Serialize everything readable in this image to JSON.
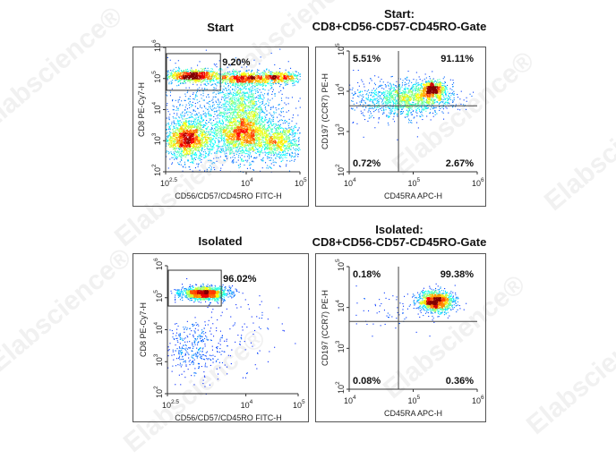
{
  "watermark": "Elabscience®",
  "chart_data": [
    {
      "type": "scatter",
      "subtype": "flow-cytometry-density",
      "title": "Start",
      "xlabel": "CD56/CD57/CD45RO FITC-H",
      "ylabel": "CD8 PE-Cy7-H",
      "xscale": "log",
      "yscale": "log",
      "xlim_log10": [
        2.5,
        5
      ],
      "ylim_log10": [
        2,
        6
      ],
      "xticks_log10": [
        2.5,
        4,
        5
      ],
      "yticks_log10": [
        2,
        3,
        4,
        5,
        6
      ],
      "gate": {
        "type": "rectangle",
        "x_log10": [
          2.5,
          3.52
        ],
        "y_log10": [
          4.62,
          5.8
        ],
        "label": "9.20%"
      },
      "populations": [
        {
          "x_log10": 3.0,
          "y_log10": 5.1,
          "sd": [
            0.25,
            0.1
          ],
          "n": 900
        },
        {
          "x_log10": 3.95,
          "y_log10": 5.02,
          "sd": [
            0.25,
            0.1
          ],
          "n": 700
        },
        {
          "x_log10": 4.6,
          "y_log10": 5.05,
          "sd": [
            0.2,
            0.1
          ],
          "n": 500
        },
        {
          "x_log10": 2.9,
          "y_log10": 3.05,
          "sd": [
            0.22,
            0.28
          ],
          "n": 1500
        },
        {
          "x_log10": 3.95,
          "y_log10": 3.2,
          "sd": [
            0.25,
            0.3
          ],
          "n": 1400
        },
        {
          "x_log10": 4.6,
          "y_log10": 3.0,
          "sd": [
            0.2,
            0.28
          ],
          "n": 700
        },
        {
          "x_log10": 3.95,
          "y_log10": 4.1,
          "sd": [
            0.22,
            0.4
          ],
          "n": 700
        },
        {
          "x_log10": 3.6,
          "y_log10": 3.6,
          "sd": [
            0.75,
            0.9
          ],
          "n": 1600
        }
      ]
    },
    {
      "type": "scatter",
      "subtype": "flow-cytometry-density",
      "title": "Start:\nCD8+CD56-CD57-CD45RO-Gate",
      "xlabel": "CD45RA APC-H",
      "ylabel": "CD197 (CCR7) PE-H",
      "xscale": "log",
      "yscale": "log",
      "xlim_log10": [
        4,
        6
      ],
      "ylim_log10": [
        2,
        5
      ],
      "xticks_log10": [
        4,
        5,
        6
      ],
      "yticks_log10": [
        2,
        3,
        4,
        5
      ],
      "quadrant": {
        "x_log10": 4.77,
        "y_log10": 3.64
      },
      "quadrant_labels": {
        "upper_left": "5.51%",
        "upper_right": "91.11%",
        "lower_left": "0.72%",
        "lower_right": "2.67%"
      },
      "populations": [
        {
          "x_log10": 5.3,
          "y_log10": 4.05,
          "sd": [
            0.1,
            0.1
          ],
          "n": 600
        },
        {
          "x_log10": 5.05,
          "y_log10": 3.85,
          "sd": [
            0.3,
            0.2
          ],
          "n": 1000
        },
        {
          "x_log10": 4.6,
          "y_log10": 3.8,
          "sd": [
            0.35,
            0.25
          ],
          "n": 500
        }
      ]
    },
    {
      "type": "scatter",
      "subtype": "flow-cytometry-density",
      "title": "Isolated",
      "xlabel": "CD56/CD57/CD45RO FITC-H",
      "ylabel": "CD8 PE-Cy7-H",
      "xscale": "log",
      "yscale": "log",
      "xlim_log10": [
        2.5,
        5
      ],
      "ylim_log10": [
        2,
        6
      ],
      "xticks_log10": [
        2.5,
        4,
        5
      ],
      "yticks_log10": [
        2,
        3,
        4,
        5,
        6
      ],
      "gate": {
        "type": "rectangle",
        "x_log10": [
          2.5,
          3.53
        ],
        "y_log10": [
          4.74,
          5.86
        ],
        "label": "96.02%"
      },
      "populations": [
        {
          "x_log10": 3.2,
          "y_log10": 5.15,
          "sd": [
            0.22,
            0.1
          ],
          "n": 1500
        },
        {
          "x_log10": 3.0,
          "y_log10": 3.4,
          "sd": [
            0.3,
            0.45
          ],
          "n": 350
        },
        {
          "x_log10": 3.6,
          "y_log10": 4.0,
          "sd": [
            0.6,
            0.8
          ],
          "n": 120
        }
      ]
    },
    {
      "type": "scatter",
      "subtype": "flow-cytometry-density",
      "title": "Isolated:\nCD8+CD56-CD57-CD45RO-Gate",
      "xlabel": "CD45RA APC-H",
      "ylabel": "CD197 (CCR7) PE-H",
      "xscale": "log",
      "yscale": "log",
      "xlim_log10": [
        4,
        6
      ],
      "ylim_log10": [
        2,
        5
      ],
      "xticks_log10": [
        4,
        5,
        6
      ],
      "yticks_log10": [
        2,
        3,
        4,
        5
      ],
      "quadrant": {
        "x_log10": 4.77,
        "y_log10": 3.66
      },
      "quadrant_labels": {
        "upper_left": "0.18%",
        "upper_right": "99.38%",
        "lower_left": "0.08%",
        "lower_right": "0.36%"
      },
      "populations": [
        {
          "x_log10": 5.35,
          "y_log10": 4.15,
          "sd": [
            0.14,
            0.13
          ],
          "n": 1300
        },
        {
          "x_log10": 4.6,
          "y_log10": 3.9,
          "sd": [
            0.3,
            0.3
          ],
          "n": 60
        }
      ]
    }
  ]
}
